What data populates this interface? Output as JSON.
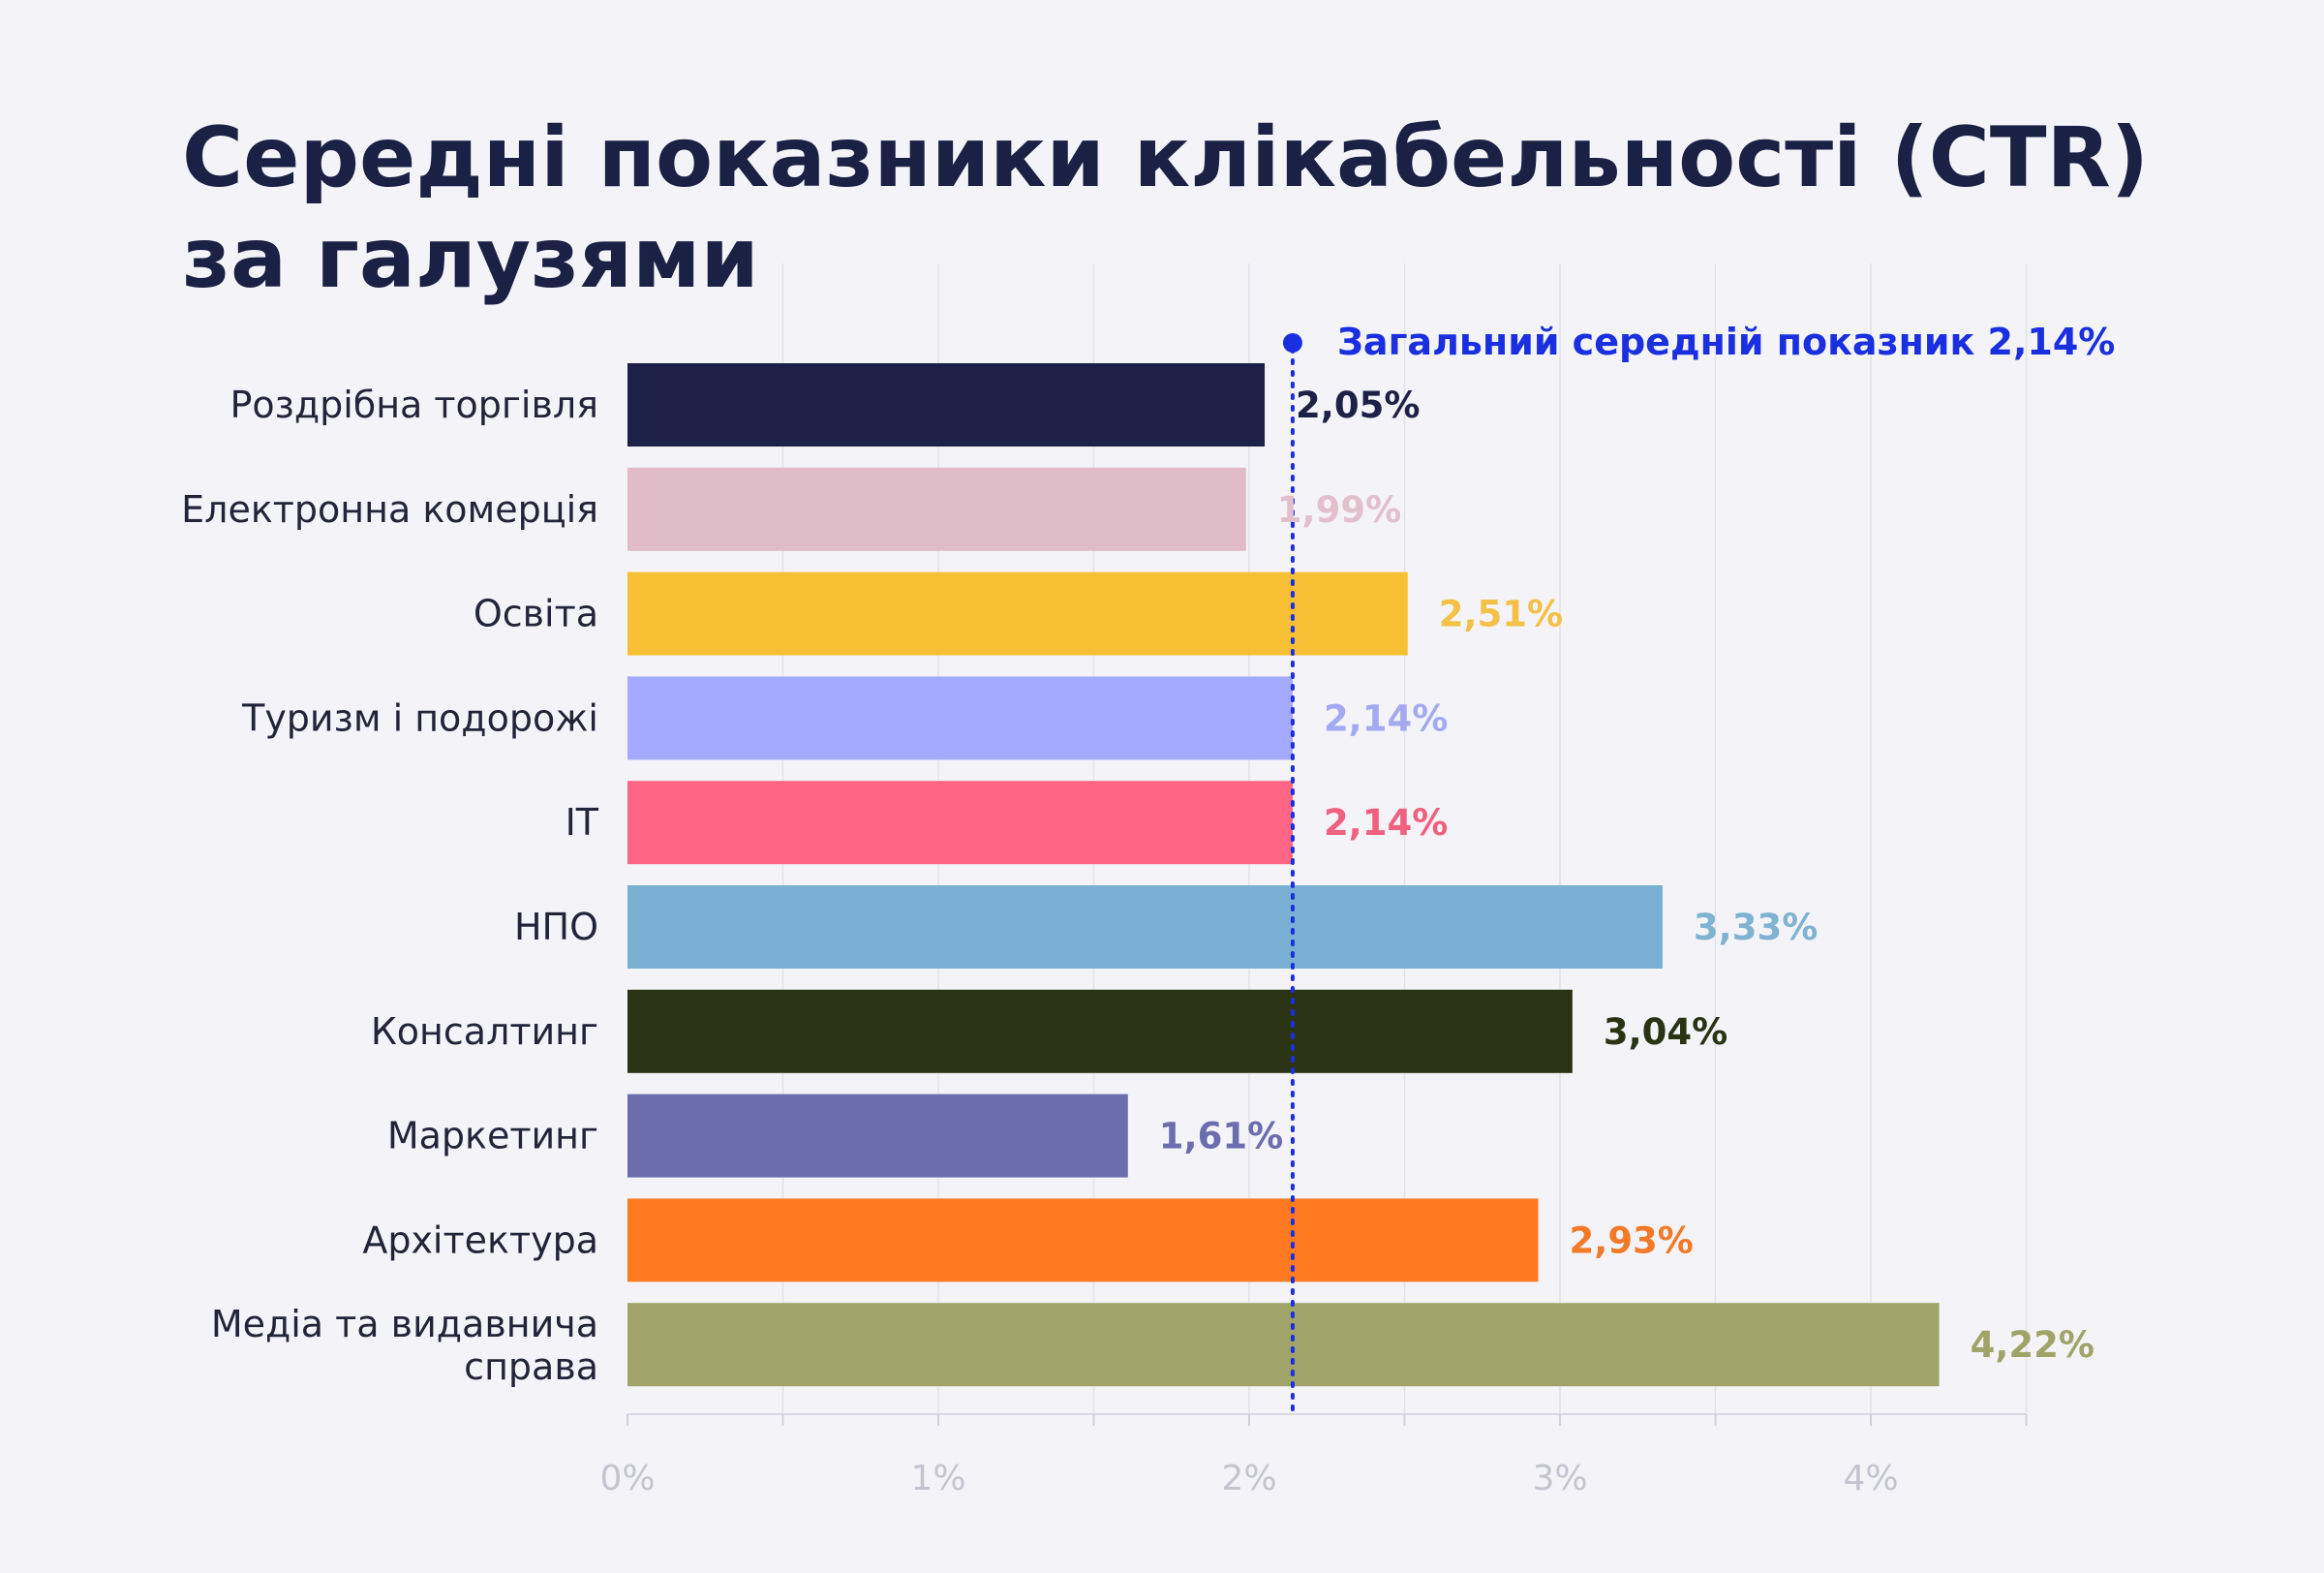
{
  "chart_data": {
    "type": "bar",
    "orientation": "horizontal",
    "title": "Середні показники клікабельності (CTR) за галузями",
    "title_lines": [
      "Середні показники клікабельності (CTR)",
      "за галузями"
    ],
    "categories": [
      "Роздрібна торгівля",
      "Електронна комерція",
      "Освіта",
      "Туризм і подорожі",
      "IT",
      "НПО",
      "Консалтинг",
      "Маркетинг",
      "Архітектура",
      "Медіа та видавнича справа"
    ],
    "values": [
      2.05,
      1.99,
      2.51,
      2.14,
      2.14,
      3.33,
      3.04,
      1.61,
      2.93,
      4.22
    ],
    "value_labels": [
      "2,05%",
      "1,99%",
      "2,51%",
      "2,14%",
      "2,14%",
      "3,33%",
      "3,04%",
      "1,61%",
      "2,93%",
      "4,22%"
    ],
    "colors": [
      "#1d2148",
      "#dfbcc7",
      "#f7bf34",
      "#a4aaff",
      "#ff6686",
      "#79b0d3",
      "#2a3314",
      "#6b6dae",
      "#ff7a20",
      "#a0a468"
    ],
    "label_colors": [
      "#1d2148",
      "#e2c0cb",
      "#f4c045",
      "#a4aaf2",
      "#f0607f",
      "#7fb3d1",
      "#2a3314",
      "#6b6dae",
      "#f47a2a",
      "#a0a468"
    ],
    "xlim": [
      0,
      4.5
    ],
    "x_ticks": [
      0,
      1,
      2,
      3,
      4
    ],
    "x_tick_labels": [
      "0%",
      "1%",
      "2%",
      "3%",
      "4%"
    ],
    "grid": true,
    "average": {
      "value": 2.14,
      "label": "Загальний середній показник 2,14%",
      "color": "#1a2fe0"
    },
    "xlabel": "",
    "ylabel": ""
  }
}
